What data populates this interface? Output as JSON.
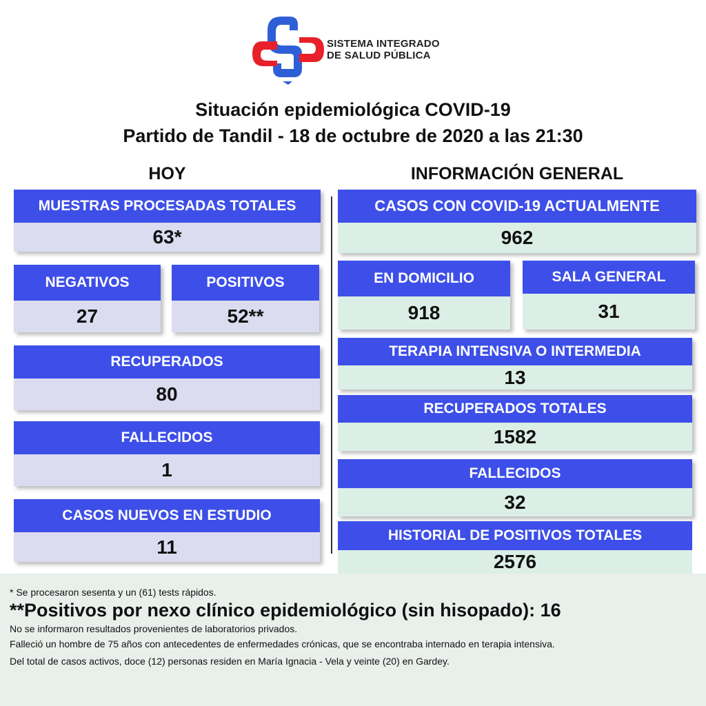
{
  "header": {
    "org_line1": "SISTEMA INTEGRADO",
    "org_line2": "DE SALUD PÚBLICA",
    "title_line1": "Situación epidemiológica COVID-19",
    "title_line2": "Partido de Tandil - 18 de octubre de 2020 a las 21:30"
  },
  "colors": {
    "header_blue": "#3d4fe8",
    "left_value_bg": "#dcdcf0",
    "right_value_bg": "#dcefe6",
    "logo_red": "#e8202a",
    "logo_blue": "#2f5fd6"
  },
  "today": {
    "heading": "HOY",
    "muestras": {
      "label": "MUESTRAS PROCESADAS TOTALES",
      "value": "63*"
    },
    "negativos": {
      "label": "NEGATIVOS",
      "value": "27"
    },
    "positivos": {
      "label": "POSITIVOS",
      "value": "52**"
    },
    "recuperados": {
      "label": "RECUPERADOS",
      "value": "80"
    },
    "fallecidos": {
      "label": "FALLECIDOS",
      "value": "1"
    },
    "casos_estudio": {
      "label": "CASOS NUEVOS EN ESTUDIO",
      "value": "11"
    }
  },
  "general": {
    "heading": "INFORMACIÓN GENERAL",
    "casos_actuales": {
      "label": "CASOS CON COVID-19 ACTUALMENTE",
      "value": "962"
    },
    "domicilio": {
      "label": "EN DOMICILIO",
      "value": "918"
    },
    "sala_general": {
      "label": "SALA GENERAL",
      "value": "31"
    },
    "terapia": {
      "label": "TERAPIA INTENSIVA O INTERMEDIA",
      "value": "13"
    },
    "recuperados_totales": {
      "label": "RECUPERADOS TOTALES",
      "value": "1582"
    },
    "fallecidos": {
      "label": "FALLECIDOS",
      "value": "32"
    },
    "historial": {
      "label": "HISTORIAL DE POSITIVOS TOTALES",
      "value": "2576"
    }
  },
  "notes": {
    "note1": "* Se procesaron sesenta y un (61) tests rápidos.",
    "note2": "**Positivos por nexo clínico epidemiológico (sin hisopado): 16",
    "note3": "No se informaron resultados provenientes de laboratorios privados.",
    "note4": "Falleció un hombre de 75 años con antecedentes de enfermedades crónicas, que se encontraba internado en terapia intensiva.",
    "note5": "Del total de casos activos, doce (12) personas residen en María Ignacia - Vela y veinte (20) en Gardey."
  }
}
